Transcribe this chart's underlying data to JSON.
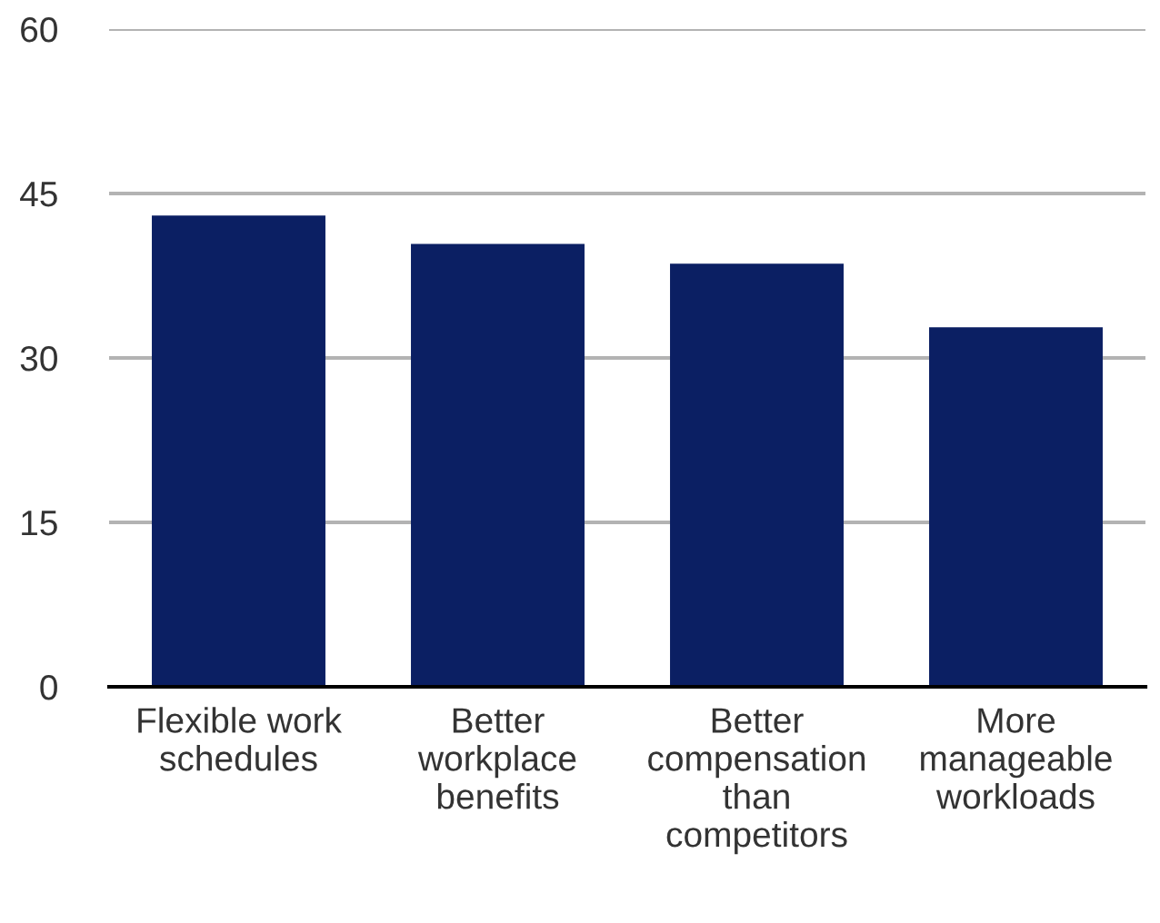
{
  "chart_data": {
    "type": "bar",
    "categories": [
      "Flexible work\nschedules",
      "Better\nworkplace\nbenefits",
      "Better\ncompensation\nthan\ncompetitors",
      "More\nmanageable\nworkloads"
    ],
    "values": [
      43,
      40.4,
      38.6,
      32.8
    ],
    "color": "#0b1f63",
    "ylim": [
      0,
      60
    ],
    "yticks": [
      0,
      15,
      30,
      45,
      60
    ],
    "grid": "y"
  }
}
